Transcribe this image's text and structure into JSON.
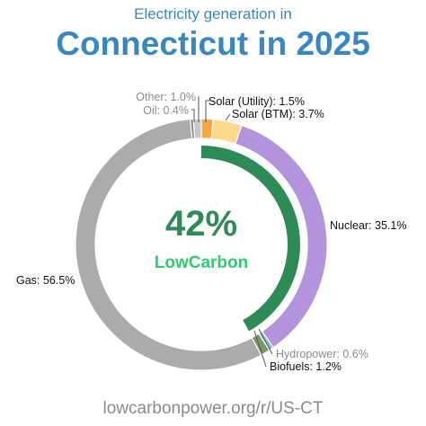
{
  "header": {
    "subtitle": "Electricity generation in",
    "title": "Connecticut in 2025"
  },
  "center": {
    "percent": "42%",
    "brand": "LowCarbon"
  },
  "footer": {
    "source": "lowcarbonpower.org/r/US-CT"
  },
  "colors": {
    "title": "#3a87c0",
    "center_percent": "#2e8b57",
    "brand": "#2ecc71",
    "low_carbon_arc": "#2e8b57"
  },
  "chart_data": {
    "type": "pie",
    "variant": "donut",
    "title": "Connecticut in 2025",
    "subtitle": "Electricity generation in",
    "low_carbon_share": 42,
    "slices": [
      {
        "name": "Solar (Utility)",
        "value": 1.5,
        "label": "Solar (Utility): 1.5%",
        "color": "#f5a742",
        "label_color": "#111111"
      },
      {
        "name": "Solar (BTM)",
        "value": 3.7,
        "label": "Solar (BTM): 3.7%",
        "color": "#fbd98a",
        "label_color": "#111111"
      },
      {
        "name": "Nuclear",
        "value": 35.1,
        "label": "Nuclear: 35.1%",
        "color": "#b394dc",
        "label_color": "#111111"
      },
      {
        "name": "Hydropower",
        "value": 0.6,
        "label": "Hydropower: 0.6%",
        "color": "#7eb8e6",
        "label_color": "#8a8a8a"
      },
      {
        "name": "Biofuels",
        "value": 1.2,
        "label": "Biofuels: 1.2%",
        "color": "#7d9a63",
        "label_color": "#111111"
      },
      {
        "name": "Gas",
        "value": 56.5,
        "label": "Gas: 56.5%",
        "color": "#ababab",
        "label_color": "#111111"
      },
      {
        "name": "Oil",
        "value": 0.4,
        "label": "Oil: 0.4%",
        "color": "#8c8c8c",
        "label_color": "#8a8a8a"
      },
      {
        "name": "Other",
        "value": 1.0,
        "label": "Other: 1.0%",
        "color": "#c8c8c8",
        "label_color": "#8a8a8a"
      }
    ]
  }
}
